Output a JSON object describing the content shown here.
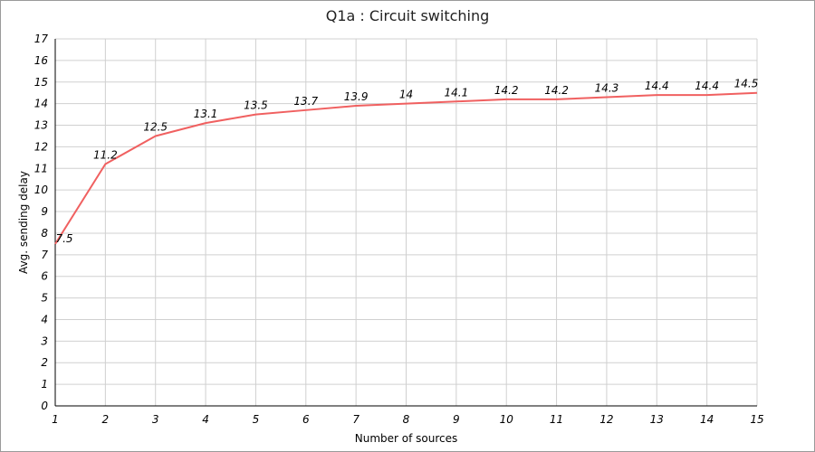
{
  "chart_data": {
    "type": "line",
    "title": "Q1a : Circuit switching",
    "xlabel": "Number of sources",
    "ylabel": "Avg. sending delay",
    "x": [
      1,
      2,
      3,
      4,
      5,
      6,
      7,
      8,
      9,
      10,
      11,
      12,
      13,
      14,
      15
    ],
    "series": [
      {
        "values": [
          7.5,
          11.2,
          12.5,
          13.1,
          13.5,
          13.7,
          13.9,
          14,
          14.1,
          14.2,
          14.2,
          14.3,
          14.4,
          14.4,
          14.5
        ],
        "data_labels": [
          "7.5",
          "11.2",
          "12.5",
          "13.1",
          "13.5",
          "13.7",
          "13.9",
          "14",
          "14.1",
          "14.2",
          "14.2",
          "14.3",
          "14.4",
          "14.4",
          "14.5"
        ],
        "color": "#f06060"
      }
    ],
    "xlim": [
      1,
      15
    ],
    "ylim": [
      0,
      17
    ],
    "yticks": [
      "0",
      "1",
      "2",
      "3",
      "4",
      "5",
      "6",
      "7",
      "8",
      "9",
      "10",
      "11",
      "12",
      "13",
      "14",
      "15",
      "16",
      "17"
    ],
    "xticks": [
      "1",
      "2",
      "3",
      "4",
      "5",
      "6",
      "7",
      "8",
      "9",
      "10",
      "11",
      "12",
      "13",
      "14",
      "15"
    ],
    "grid": true,
    "legend": "none"
  }
}
